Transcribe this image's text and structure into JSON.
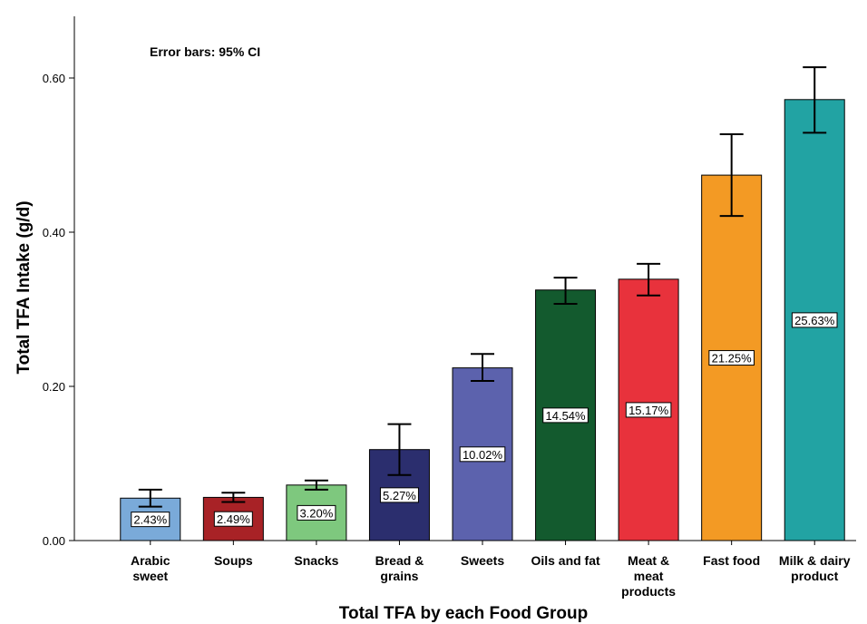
{
  "chart_data": {
    "type": "bar",
    "annotation": "Error bars: 95% CI",
    "xlabel": "Total TFA by each Food Group",
    "ylabel": "Total TFA Intake (g/d)",
    "ylim": [
      0,
      0.68
    ],
    "yticks": [
      0.0,
      0.2,
      0.4,
      0.6
    ],
    "ytick_labels": [
      "0.00",
      "0.20",
      "0.40",
      "0.60"
    ],
    "grid": false,
    "categories": [
      [
        "Arabic",
        "sweet"
      ],
      [
        "Soups"
      ],
      [
        "Snacks"
      ],
      [
        "Bread &",
        "grains"
      ],
      [
        "Sweets"
      ],
      [
        "Oils and fat"
      ],
      [
        "Meat &",
        "meat",
        "products"
      ],
      [
        "Fast food"
      ],
      [
        "Milk & dairy",
        "product"
      ]
    ],
    "values": [
      0.055,
      0.056,
      0.072,
      0.118,
      0.224,
      0.325,
      0.339,
      0.474,
      0.572
    ],
    "ci_low": [
      0.044,
      0.05,
      0.066,
      0.085,
      0.207,
      0.307,
      0.318,
      0.421,
      0.529
    ],
    "ci_high": [
      0.066,
      0.062,
      0.078,
      0.151,
      0.242,
      0.341,
      0.359,
      0.527,
      0.614
    ],
    "data_labels": [
      "2.43%",
      "2.49%",
      "3.20%",
      "5.27%",
      "10.02%",
      "14.54%",
      "15.17%",
      "21.25%",
      "25.63%"
    ],
    "colors": [
      "#7aaad9",
      "#a82226",
      "#7ec87e",
      "#2b2e6e",
      "#5c62ad",
      "#135a2e",
      "#e8323c",
      "#f39a24",
      "#22a3a3"
    ]
  }
}
